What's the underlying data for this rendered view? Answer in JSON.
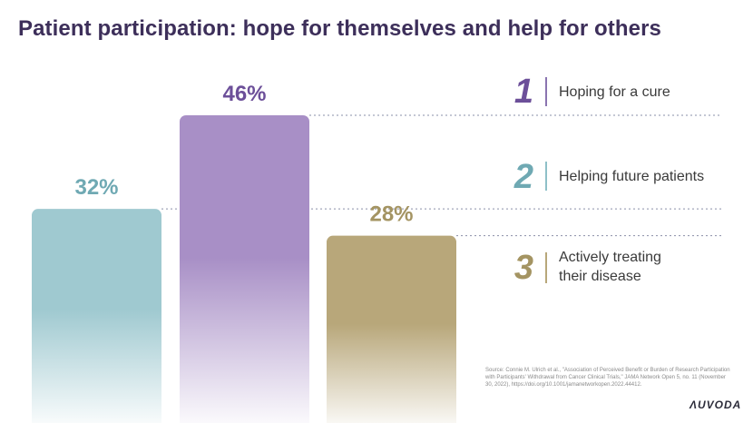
{
  "title": "Patient participation: hope for themselves and help for others",
  "chart_data": {
    "type": "bar",
    "title": "Patient participation: hope for themselves and help for others",
    "categories": [
      "Hoping for a cure",
      "Helping future patients",
      "Actively treating their disease"
    ],
    "values": [
      46,
      32,
      28
    ],
    "value_labels": [
      "46%",
      "32%",
      "28%"
    ],
    "ranks": [
      "1",
      "2",
      "3"
    ],
    "ylim": [
      0,
      50
    ],
    "grid": false,
    "legend": "right",
    "colors": [
      "#a88fc6",
      "#9fc9d0",
      "#b8a77a"
    ],
    "label_colors": [
      "#6c4f99",
      "#6fa9b3",
      "#a49462"
    ],
    "bar_order": [
      1,
      0,
      2
    ]
  },
  "legend": [
    {
      "num": "1",
      "label": "Hoping for a cure"
    },
    {
      "num": "2",
      "label": "Helping future patients"
    },
    {
      "num": "3",
      "label": "Actively treating their disease",
      "lines": [
        "Actively treating",
        "their disease"
      ]
    }
  ],
  "source": "Source: Connie M. Ulrich et al., \"Association of Perceived Benefit or Burden of Research Participation with Participants' Withdrawal from Cancer Clinical Trials,\" JAMA Network Open 5, no. 11 (November 30, 2022), https://doi.org/10.1001/jamanetworkopen.2022.44412.",
  "logo": "ΛUVODA"
}
